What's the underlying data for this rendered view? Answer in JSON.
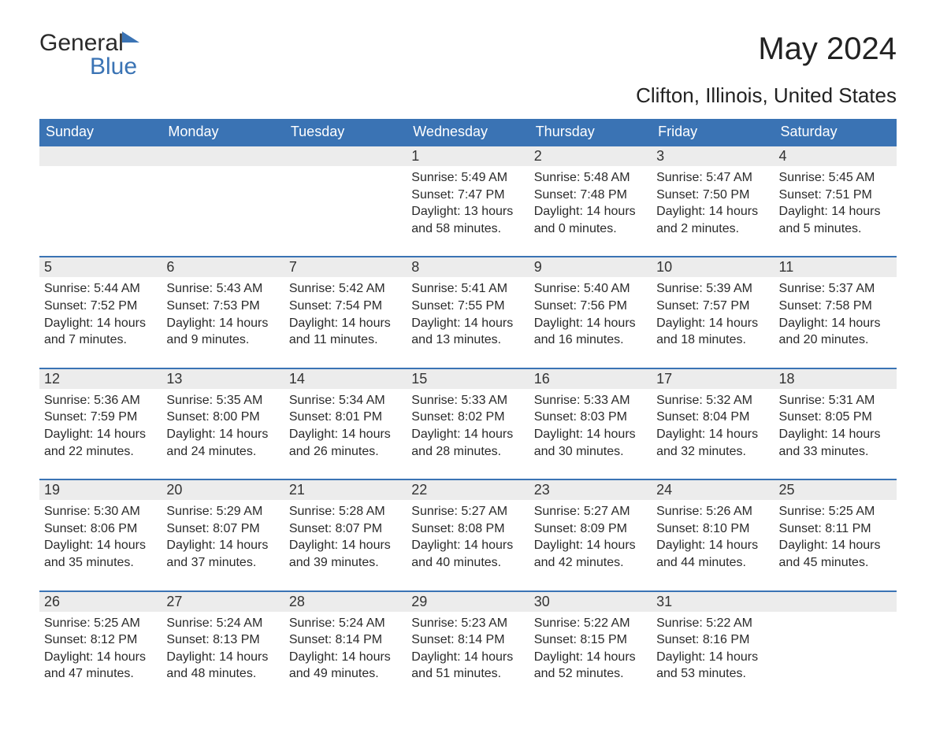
{
  "logo": {
    "line1": "General",
    "line2": "Blue"
  },
  "title": "May 2024",
  "location": "Clifton, Illinois, United States",
  "theme": {
    "header_bg": "#3a73b4",
    "header_text": "#ffffff",
    "daynum_bg": "#ececec",
    "row_border": "#3a73b4",
    "body_text": "#2a2a2a",
    "page_bg": "#ffffff",
    "title_fontsize": 40,
    "location_fontsize": 26,
    "dayhead_fontsize": 18,
    "cell_fontsize": 16
  },
  "weekdays": [
    "Sunday",
    "Monday",
    "Tuesday",
    "Wednesday",
    "Thursday",
    "Friday",
    "Saturday"
  ],
  "weeks": [
    [
      null,
      null,
      null,
      {
        "n": "1",
        "sr": "Sunrise: 5:49 AM",
        "ss": "Sunset: 7:47 PM",
        "dl": "Daylight: 13 hours and 58 minutes."
      },
      {
        "n": "2",
        "sr": "Sunrise: 5:48 AM",
        "ss": "Sunset: 7:48 PM",
        "dl": "Daylight: 14 hours and 0 minutes."
      },
      {
        "n": "3",
        "sr": "Sunrise: 5:47 AM",
        "ss": "Sunset: 7:50 PM",
        "dl": "Daylight: 14 hours and 2 minutes."
      },
      {
        "n": "4",
        "sr": "Sunrise: 5:45 AM",
        "ss": "Sunset: 7:51 PM",
        "dl": "Daylight: 14 hours and 5 minutes."
      }
    ],
    [
      {
        "n": "5",
        "sr": "Sunrise: 5:44 AM",
        "ss": "Sunset: 7:52 PM",
        "dl": "Daylight: 14 hours and 7 minutes."
      },
      {
        "n": "6",
        "sr": "Sunrise: 5:43 AM",
        "ss": "Sunset: 7:53 PM",
        "dl": "Daylight: 14 hours and 9 minutes."
      },
      {
        "n": "7",
        "sr": "Sunrise: 5:42 AM",
        "ss": "Sunset: 7:54 PM",
        "dl": "Daylight: 14 hours and 11 minutes."
      },
      {
        "n": "8",
        "sr": "Sunrise: 5:41 AM",
        "ss": "Sunset: 7:55 PM",
        "dl": "Daylight: 14 hours and 13 minutes."
      },
      {
        "n": "9",
        "sr": "Sunrise: 5:40 AM",
        "ss": "Sunset: 7:56 PM",
        "dl": "Daylight: 14 hours and 16 minutes."
      },
      {
        "n": "10",
        "sr": "Sunrise: 5:39 AM",
        "ss": "Sunset: 7:57 PM",
        "dl": "Daylight: 14 hours and 18 minutes."
      },
      {
        "n": "11",
        "sr": "Sunrise: 5:37 AM",
        "ss": "Sunset: 7:58 PM",
        "dl": "Daylight: 14 hours and 20 minutes."
      }
    ],
    [
      {
        "n": "12",
        "sr": "Sunrise: 5:36 AM",
        "ss": "Sunset: 7:59 PM",
        "dl": "Daylight: 14 hours and 22 minutes."
      },
      {
        "n": "13",
        "sr": "Sunrise: 5:35 AM",
        "ss": "Sunset: 8:00 PM",
        "dl": "Daylight: 14 hours and 24 minutes."
      },
      {
        "n": "14",
        "sr": "Sunrise: 5:34 AM",
        "ss": "Sunset: 8:01 PM",
        "dl": "Daylight: 14 hours and 26 minutes."
      },
      {
        "n": "15",
        "sr": "Sunrise: 5:33 AM",
        "ss": "Sunset: 8:02 PM",
        "dl": "Daylight: 14 hours and 28 minutes."
      },
      {
        "n": "16",
        "sr": "Sunrise: 5:33 AM",
        "ss": "Sunset: 8:03 PM",
        "dl": "Daylight: 14 hours and 30 minutes."
      },
      {
        "n": "17",
        "sr": "Sunrise: 5:32 AM",
        "ss": "Sunset: 8:04 PM",
        "dl": "Daylight: 14 hours and 32 minutes."
      },
      {
        "n": "18",
        "sr": "Sunrise: 5:31 AM",
        "ss": "Sunset: 8:05 PM",
        "dl": "Daylight: 14 hours and 33 minutes."
      }
    ],
    [
      {
        "n": "19",
        "sr": "Sunrise: 5:30 AM",
        "ss": "Sunset: 8:06 PM",
        "dl": "Daylight: 14 hours and 35 minutes."
      },
      {
        "n": "20",
        "sr": "Sunrise: 5:29 AM",
        "ss": "Sunset: 8:07 PM",
        "dl": "Daylight: 14 hours and 37 minutes."
      },
      {
        "n": "21",
        "sr": "Sunrise: 5:28 AM",
        "ss": "Sunset: 8:07 PM",
        "dl": "Daylight: 14 hours and 39 minutes."
      },
      {
        "n": "22",
        "sr": "Sunrise: 5:27 AM",
        "ss": "Sunset: 8:08 PM",
        "dl": "Daylight: 14 hours and 40 minutes."
      },
      {
        "n": "23",
        "sr": "Sunrise: 5:27 AM",
        "ss": "Sunset: 8:09 PM",
        "dl": "Daylight: 14 hours and 42 minutes."
      },
      {
        "n": "24",
        "sr": "Sunrise: 5:26 AM",
        "ss": "Sunset: 8:10 PM",
        "dl": "Daylight: 14 hours and 44 minutes."
      },
      {
        "n": "25",
        "sr": "Sunrise: 5:25 AM",
        "ss": "Sunset: 8:11 PM",
        "dl": "Daylight: 14 hours and 45 minutes."
      }
    ],
    [
      {
        "n": "26",
        "sr": "Sunrise: 5:25 AM",
        "ss": "Sunset: 8:12 PM",
        "dl": "Daylight: 14 hours and 47 minutes."
      },
      {
        "n": "27",
        "sr": "Sunrise: 5:24 AM",
        "ss": "Sunset: 8:13 PM",
        "dl": "Daylight: 14 hours and 48 minutes."
      },
      {
        "n": "28",
        "sr": "Sunrise: 5:24 AM",
        "ss": "Sunset: 8:14 PM",
        "dl": "Daylight: 14 hours and 49 minutes."
      },
      {
        "n": "29",
        "sr": "Sunrise: 5:23 AM",
        "ss": "Sunset: 8:14 PM",
        "dl": "Daylight: 14 hours and 51 minutes."
      },
      {
        "n": "30",
        "sr": "Sunrise: 5:22 AM",
        "ss": "Sunset: 8:15 PM",
        "dl": "Daylight: 14 hours and 52 minutes."
      },
      {
        "n": "31",
        "sr": "Sunrise: 5:22 AM",
        "ss": "Sunset: 8:16 PM",
        "dl": "Daylight: 14 hours and 53 minutes."
      },
      null
    ]
  ]
}
